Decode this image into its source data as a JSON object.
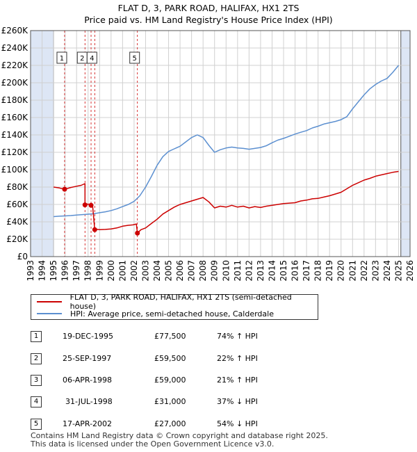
{
  "header": {
    "title": "FLAT D, 3, PARK ROAD, HALIFAX, HX1 2TS",
    "subtitle": "Price paid vs. HM Land Registry's House Price Index (HPI)"
  },
  "colors": {
    "property": "#cc0000",
    "hpi": "#5b8fd0",
    "shade": "#dde6f5",
    "grid": "#d0d0d0"
  },
  "chart_data": {
    "type": "line",
    "title": "Price paid vs. HM Land Registry's House Price Index (HPI)",
    "xlabel": "",
    "ylabel": "",
    "xlim": [
      1993,
      2026
    ],
    "ylim": [
      0,
      260000
    ],
    "x_ticks": [
      1993,
      1994,
      1995,
      1996,
      1997,
      1998,
      1999,
      2000,
      2001,
      2002,
      2003,
      2004,
      2005,
      2006,
      2007,
      2008,
      2009,
      2010,
      2011,
      2012,
      2013,
      2014,
      2015,
      2016,
      2017,
      2018,
      2019,
      2020,
      2021,
      2022,
      2023,
      2024,
      2025,
      2026
    ],
    "y_ticks": [
      {
        "value": 0,
        "label": "£0"
      },
      {
        "value": 20000,
        "label": "£20K"
      },
      {
        "value": 40000,
        "label": "£40K"
      },
      {
        "value": 60000,
        "label": "£60K"
      },
      {
        "value": 80000,
        "label": "£80K"
      },
      {
        "value": 100000,
        "label": "£100K"
      },
      {
        "value": 120000,
        "label": "£120K"
      },
      {
        "value": 140000,
        "label": "£140K"
      },
      {
        "value": 160000,
        "label": "£160K"
      },
      {
        "value": 180000,
        "label": "£180K"
      },
      {
        "value": 200000,
        "label": "£200K"
      },
      {
        "value": 220000,
        "label": "£220K"
      },
      {
        "value": 240000,
        "label": "£240K"
      },
      {
        "value": 260000,
        "label": "£260K"
      }
    ],
    "data_range": [
      1995.0,
      2025.2
    ],
    "series": [
      {
        "name": "FLAT D, 3, PARK ROAD, HALIFAX, HX1 2TS (semi-detached house)",
        "color": "#cc0000",
        "x": [
          1995.0,
          1995.5,
          1995.96,
          1996.5,
          1997.0,
          1997.4,
          1997.73,
          1997.73,
          1998.0,
          1998.26,
          1998.4,
          1998.58,
          1998.7,
          1999.0,
          1999.5,
          2000.0,
          2000.5,
          2001.0,
          2001.5,
          2001.9,
          2002.2,
          2002.29,
          2002.6,
          2003.0,
          2003.5,
          2004.0,
          2004.5,
          2005.0,
          2005.5,
          2006.0,
          2006.5,
          2007.0,
          2007.5,
          2008.0,
          2008.5,
          2009.0,
          2009.5,
          2010.0,
          2010.5,
          2011.0,
          2011.5,
          2012.0,
          2012.5,
          2013.0,
          2013.5,
          2014.0,
          2014.5,
          2015.0,
          2015.5,
          2016.0,
          2016.5,
          2017.0,
          2017.5,
          2018.0,
          2018.5,
          2019.0,
          2019.5,
          2020.0,
          2020.5,
          2021.0,
          2021.5,
          2022.0,
          2022.5,
          2023.0,
          2023.5,
          2024.0,
          2024.5,
          2025.0
        ],
        "y": [
          80000,
          79000,
          77500,
          79500,
          81000,
          82000,
          84000,
          59500,
          60500,
          59000,
          58000,
          31000,
          31500,
          31000,
          31300,
          31800,
          33000,
          35000,
          36000,
          36500,
          37500,
          27000,
          31000,
          33000,
          38000,
          43000,
          49000,
          53000,
          57000,
          60000,
          62000,
          64000,
          66000,
          68000,
          63000,
          56000,
          58000,
          57000,
          59000,
          57000,
          58000,
          56000,
          57500,
          56500,
          58000,
          59000,
          60000,
          61000,
          61500,
          62000,
          64000,
          65000,
          66500,
          67000,
          68500,
          70000,
          72000,
          74000,
          78000,
          82000,
          85000,
          88000,
          90000,
          92500,
          94000,
          95500,
          97000,
          98000
        ]
      },
      {
        "name": "HPI: Average price, semi-detached house, Calderdale",
        "color": "#5b8fd0",
        "x": [
          1995.0,
          1995.5,
          1996.0,
          1996.5,
          1997.0,
          1997.5,
          1998.0,
          1998.5,
          1999.0,
          1999.5,
          2000.0,
          2000.5,
          2001.0,
          2001.5,
          2002.0,
          2002.5,
          2003.0,
          2003.5,
          2004.0,
          2004.5,
          2005.0,
          2005.5,
          2006.0,
          2006.5,
          2007.0,
          2007.5,
          2008.0,
          2008.5,
          2009.0,
          2009.5,
          2010.0,
          2010.5,
          2011.0,
          2011.5,
          2012.0,
          2012.5,
          2013.0,
          2013.5,
          2014.0,
          2014.5,
          2015.0,
          2015.5,
          2016.0,
          2016.5,
          2017.0,
          2017.5,
          2018.0,
          2018.5,
          2019.0,
          2019.5,
          2020.0,
          2020.5,
          2021.0,
          2021.5,
          2022.0,
          2022.5,
          2023.0,
          2023.5,
          2024.0,
          2024.5,
          2025.0
        ],
        "y": [
          46000,
          46500,
          46800,
          47200,
          47800,
          48300,
          48800,
          49300,
          50500,
          51500,
          53000,
          55000,
          57500,
          60000,
          63500,
          70000,
          80000,
          92000,
          105000,
          115000,
          121000,
          124000,
          127000,
          132000,
          137000,
          140000,
          137000,
          128000,
          120000,
          123000,
          125000,
          126000,
          125000,
          124500,
          123500,
          124500,
          125500,
          127500,
          131000,
          134000,
          136000,
          138500,
          141000,
          143000,
          145000,
          148000,
          150000,
          152500,
          154000,
          155500,
          157500,
          161000,
          170000,
          178000,
          186000,
          193000,
          198000,
          202000,
          205000,
          212000,
          220000
        ]
      }
    ],
    "sales": [
      {
        "id": "1",
        "x": 1995.96,
        "y": 77500
      },
      {
        "id": "2",
        "x": 1997.73,
        "y": 59500
      },
      {
        "id": "3",
        "x": 1998.26,
        "y": 59000
      },
      {
        "id": "4",
        "x": 1998.58,
        "y": 31000
      },
      {
        "id": "5",
        "x": 2002.29,
        "y": 27000
      }
    ],
    "marker_labels": [
      {
        "id": "1",
        "x": 1995.96
      },
      {
        "id": "2",
        "x": 1997.73
      },
      {
        "id": "4",
        "x": 1998.58
      },
      {
        "id": "5",
        "x": 2002.29
      }
    ]
  },
  "legend": {
    "property": "FLAT D, 3, PARK ROAD, HALIFAX, HX1 2TS (semi-detached house)",
    "hpi": "HPI: Average price, semi-detached house, Calderdale"
  },
  "sales_table": [
    {
      "num": "1",
      "date": "19-DEC-1995",
      "price": "£77,500",
      "hpi": "74% ↑ HPI"
    },
    {
      "num": "2",
      "date": "25-SEP-1997",
      "price": "£59,500",
      "hpi": "22% ↑ HPI"
    },
    {
      "num": "3",
      "date": "06-APR-1998",
      "price": "£59,000",
      "hpi": "21% ↑ HPI"
    },
    {
      "num": "4",
      "date": "31-JUL-1998",
      "price": "£31,000",
      "hpi": "37% ↓ HPI"
    },
    {
      "num": "5",
      "date": "17-APR-2002",
      "price": "£27,000",
      "hpi": "54% ↓ HPI"
    }
  ],
  "footer": {
    "line1": "Contains HM Land Registry data © Crown copyright and database right 2025.",
    "line2": "This data is licensed under the Open Government Licence v3.0."
  }
}
